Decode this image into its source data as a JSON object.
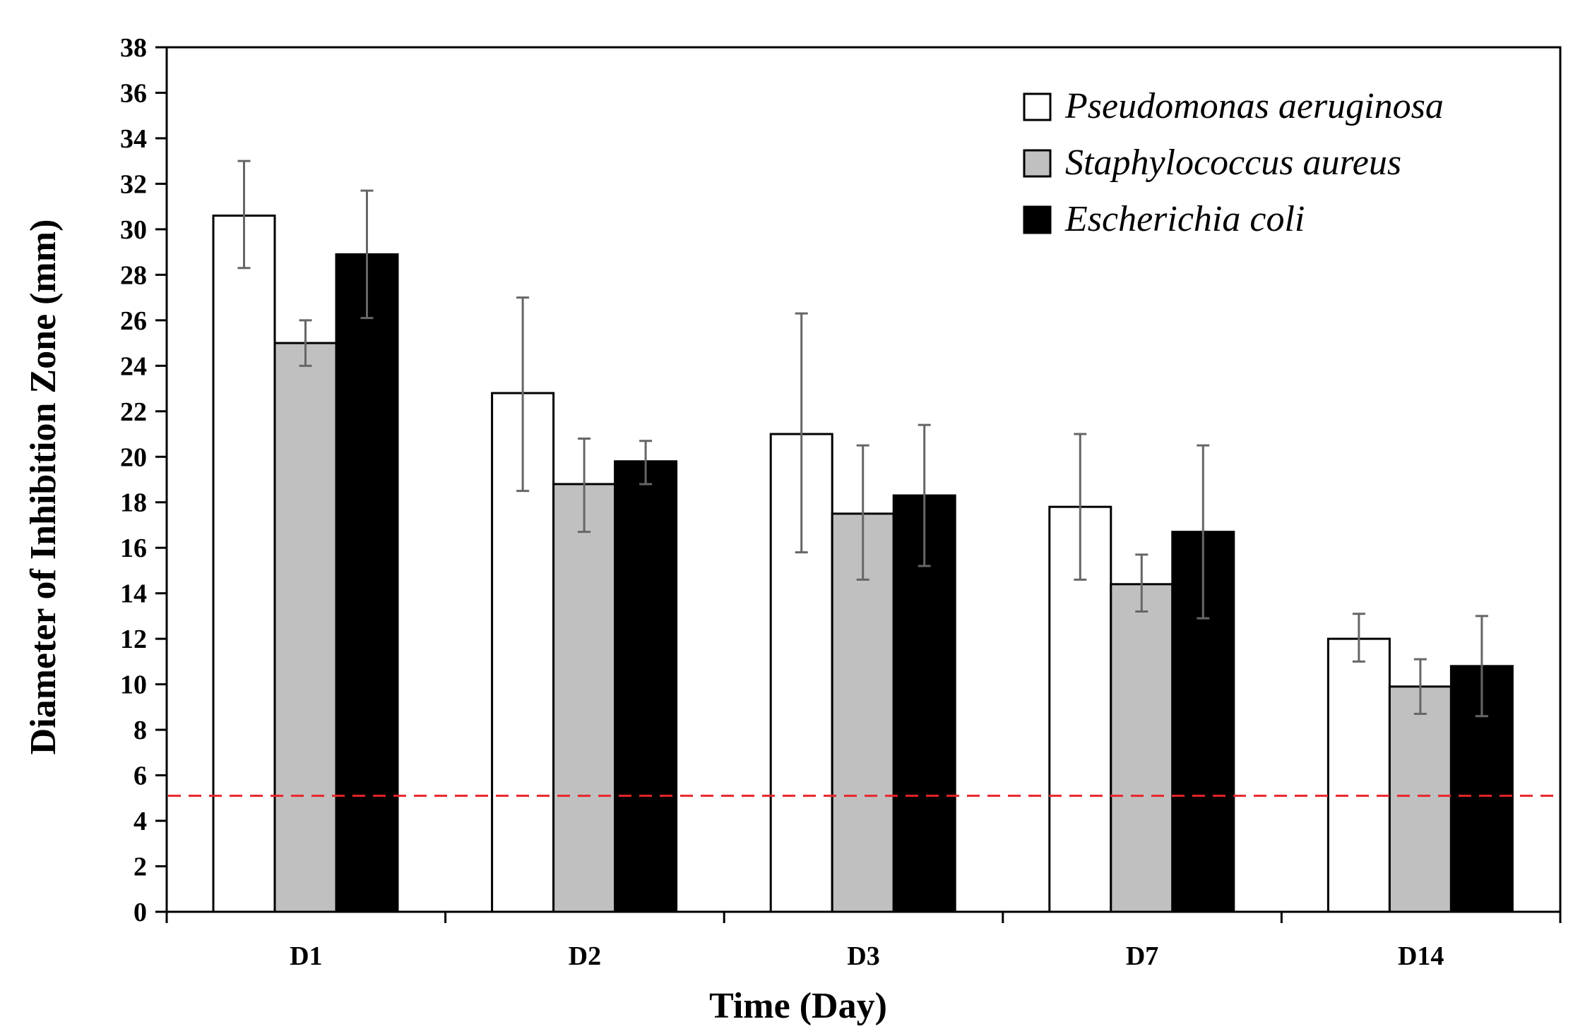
{
  "chart_data": {
    "type": "bar",
    "title": "",
    "xlabel": "Time (Day)",
    "ylabel": "Diameter of Inhibition Zone (mm)",
    "ylim": [
      0,
      38
    ],
    "ytick_step": 2,
    "categories": [
      "D1",
      "D2",
      "D3",
      "D7",
      "D14"
    ],
    "series": [
      {
        "name": "Pseudomonas aeruginosa",
        "color": "#ffffff",
        "values": [
          30.6,
          22.8,
          21.0,
          17.8,
          12.0
        ],
        "error_upper": [
          33.0,
          27.0,
          26.3,
          21.0,
          13.1
        ],
        "error_lower": [
          28.3,
          18.5,
          15.8,
          14.6,
          11.0
        ]
      },
      {
        "name": "Staphylococcus aureus",
        "color": "#c0c0c0",
        "values": [
          25.0,
          18.8,
          17.5,
          14.4,
          9.9
        ],
        "error_upper": [
          26.0,
          20.8,
          20.5,
          15.7,
          11.1
        ],
        "error_lower": [
          24.0,
          16.7,
          14.6,
          13.2,
          8.7
        ]
      },
      {
        "name": "Escherichia coli",
        "color": "#000000",
        "values": [
          28.9,
          19.8,
          18.3,
          16.7,
          10.8
        ],
        "error_upper": [
          31.7,
          20.7,
          21.4,
          20.5,
          13.0
        ],
        "error_lower": [
          26.1,
          18.8,
          15.2,
          12.9,
          8.6
        ]
      }
    ],
    "reference_line": {
      "value": 5.1,
      "color": "#e8242a",
      "style": "dashed"
    },
    "legend": {
      "position": "top-right"
    },
    "grid": false
  }
}
